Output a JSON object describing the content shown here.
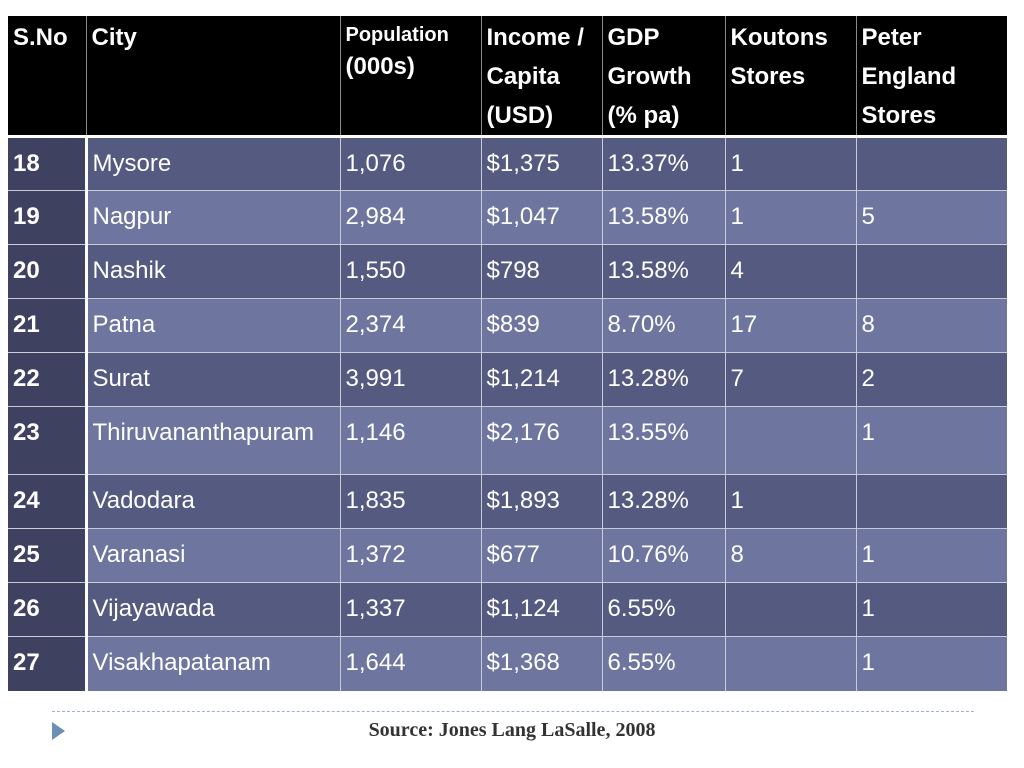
{
  "table": {
    "headers": [
      {
        "main": "S.No",
        "sub": ""
      },
      {
        "main": "City",
        "sub": ""
      },
      {
        "main": "Population",
        "sub": "(000s)"
      },
      {
        "main": "Income / Capita (USD)",
        "sub": ""
      },
      {
        "main": "GDP Growth (% pa)",
        "sub": ""
      },
      {
        "main": "Koutons Stores",
        "sub": ""
      },
      {
        "main": "Peter England Stores",
        "sub": ""
      }
    ],
    "rows": [
      {
        "sno": "18",
        "city": "Mysore",
        "population": "1,076",
        "income": "$1,375",
        "gdp": "13.37%",
        "koutons": "1",
        "peter": ""
      },
      {
        "sno": "19",
        "city": "Nagpur",
        "population": "2,984",
        "income": "$1,047",
        "gdp": "13.58%",
        "koutons": "1",
        "peter": "5"
      },
      {
        "sno": "20",
        "city": "Nashik",
        "population": "1,550",
        "income": "$798",
        "gdp": "13.58%",
        "koutons": "4",
        "peter": ""
      },
      {
        "sno": "21",
        "city": "Patna",
        "population": "2,374",
        "income": "$839",
        "gdp": "8.70%",
        "koutons": "17",
        "peter": "8"
      },
      {
        "sno": "22",
        "city": "Surat",
        "population": "3,991",
        "income": "$1,214",
        "gdp": "13.28%",
        "koutons": "7",
        "peter": "2"
      },
      {
        "sno": "23",
        "city": "Thiruvananthapuram",
        "population": "1,146",
        "income": "$2,176",
        "gdp": "13.55%",
        "koutons": "",
        "peter": "1"
      },
      {
        "sno": "24",
        "city": "Vadodara",
        "population": "1,835",
        "income": "$1,893",
        "gdp": "13.28%",
        "koutons": "1",
        "peter": ""
      },
      {
        "sno": "25",
        "city": "Varanasi",
        "population": "1,372",
        "income": "$677",
        "gdp": "10.76%",
        "koutons": "8",
        "peter": "1"
      },
      {
        "sno": "26",
        "city": "Vijayawada",
        "population": "1,337",
        "income": "$1,124",
        "gdp": "6.55%",
        "koutons": "",
        "peter": "1"
      },
      {
        "sno": "27",
        "city": "Visakhapatanam",
        "population": "1,644",
        "income": "$1,368",
        "gdp": "6.55%",
        "koutons": "",
        "peter": "1"
      }
    ]
  },
  "footer": {
    "source": "Source: Jones Lang LaSalle, 2008"
  },
  "colors": {
    "header_bg": "#000000",
    "row_dark": "#545a80",
    "row_light": "#6e759e",
    "sno_column": "#3e4260",
    "arrow": "#6b8fb5"
  }
}
